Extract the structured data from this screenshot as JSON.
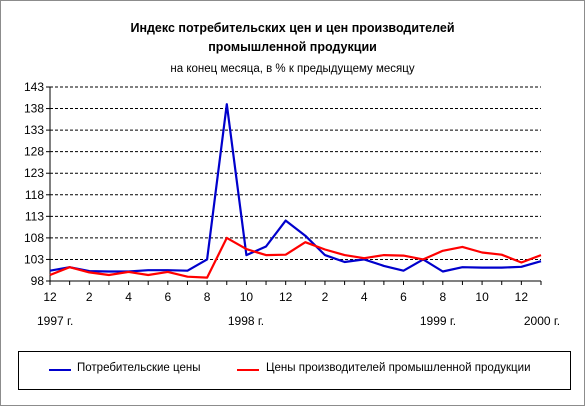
{
  "chart_data": {
    "type": "line",
    "title_lines": [
      "Индекс потребительских цен и цен производителей",
      "промышленной продукции"
    ],
    "subtitle": "на конец месяца, в % к предыдущему месяцу",
    "x_ticks": [
      "12",
      "2",
      "4",
      "6",
      "8",
      "10",
      "12",
      "2",
      "4",
      "6",
      "8",
      "10",
      "12"
    ],
    "year_labels": [
      "1997 г.",
      "1998 г.",
      "1999 г.",
      "2000 г."
    ],
    "ylim": [
      98,
      143
    ],
    "y_ticks": [
      98,
      103,
      108,
      113,
      118,
      123,
      128,
      133,
      138,
      143
    ],
    "grid": "horizontal dashed",
    "x": [
      "1997-12",
      "1998-01",
      "1998-02",
      "1998-03",
      "1998-04",
      "1998-05",
      "1998-06",
      "1998-07",
      "1998-08",
      "1998-09",
      "1998-10",
      "1998-11",
      "1998-12",
      "1999-01",
      "1999-02",
      "1999-03",
      "1999-04",
      "1999-05",
      "1999-06",
      "1999-07",
      "1999-08",
      "1999-09",
      "1999-10",
      "1999-11",
      "1999-12",
      "2000-01"
    ],
    "series": [
      {
        "name": "Потребительские цены",
        "color": "#0000cc",
        "values": [
          100.4,
          101.2,
          100.3,
          100.2,
          100.2,
          100.5,
          100.5,
          100.4,
          103.0,
          139.0,
          104.0,
          106.0,
          112.0,
          108.5,
          104.0,
          102.4,
          103.0,
          101.5,
          100.4,
          103.0,
          100.2,
          101.2,
          101.1,
          101.1,
          101.3,
          102.6
        ]
      },
      {
        "name": "Цены производителей промышленной продукции",
        "color": "#ff0000",
        "values": [
          99.4,
          101.2,
          100.0,
          99.4,
          100.1,
          99.4,
          100.1,
          99.0,
          98.8,
          108.0,
          105.4,
          104.0,
          104.1,
          107.0,
          105.3,
          104.0,
          103.3,
          104.0,
          103.9,
          103.0,
          105.0,
          105.9,
          104.6,
          104.1,
          102.3,
          104.0
        ]
      }
    ]
  },
  "legend": {
    "items": [
      {
        "label": "Потребительские цены",
        "color": "#0000cc"
      },
      {
        "label": "Цены производителей промышленной продукции",
        "color": "#ff0000"
      }
    ]
  }
}
